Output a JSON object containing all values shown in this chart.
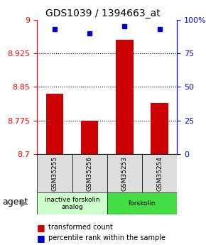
{
  "title": "GDS1039 / 1394663_at",
  "samples": [
    "GSM35255",
    "GSM35256",
    "GSM35253",
    "GSM35254"
  ],
  "bar_values": [
    8.835,
    8.775,
    8.955,
    8.815
  ],
  "percentile_values": [
    93,
    90,
    95,
    93
  ],
  "ymin": 8.7,
  "ymax": 9.0,
  "yticks": [
    8.7,
    8.775,
    8.85,
    8.925,
    9.0
  ],
  "ytick_labels": [
    "8.7",
    "8.775",
    "8.85",
    "8.925",
    "9"
  ],
  "right_yticks": [
    0,
    25,
    50,
    75,
    100
  ],
  "right_ytick_labels": [
    "0",
    "25",
    "50",
    "75",
    "100%"
  ],
  "bar_color": "#cc0000",
  "dot_color": "#0000cc",
  "agent_groups": [
    {
      "label": "inactive forskolin\nanalog",
      "start": 0,
      "end": 2,
      "color": "#ccffcc"
    },
    {
      "label": "forskolin",
      "start": 2,
      "end": 4,
      "color": "#44dd44"
    }
  ],
  "legend_items": [
    {
      "color": "#cc0000",
      "label": "transformed count"
    },
    {
      "color": "#0000cc",
      "label": "percentile rank within the sample"
    }
  ]
}
